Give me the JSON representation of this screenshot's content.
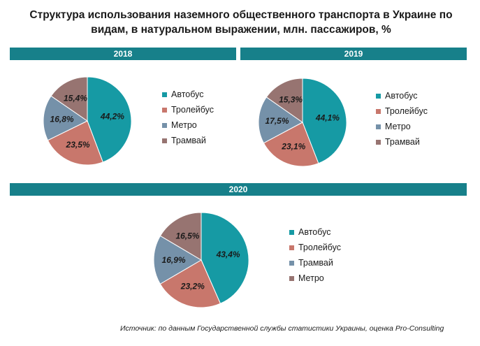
{
  "title": "Структура использования наземного общественного транспорта в Украине по видам, в натуральном выражении, млн. пассажиров, %",
  "source": "Источник: по данным Государственной службы статистики Украины, оценка Pro-Consulting",
  "colors": {
    "bar": "#17808a"
  },
  "chart_data": [
    {
      "type": "pie",
      "title": "2018",
      "categories": [
        "Автобус",
        "Тролейбус",
        "Метро",
        "Трамвай"
      ],
      "values": [
        44.2,
        23.5,
        16.8,
        15.4
      ],
      "labels": [
        "44,2%",
        "23,5%",
        "16,8%",
        "15,4%"
      ],
      "colors": [
        "#169aa4",
        "#c8776c",
        "#7591a9",
        "#977471"
      ],
      "legend": [
        "Автобус",
        "Тролейбус",
        "Метро",
        "Трамвай"
      ],
      "legend_colors": [
        "#169aa4",
        "#c8776c",
        "#7591a9",
        "#977471"
      ]
    },
    {
      "type": "pie",
      "title": "2019",
      "categories": [
        "Автобус",
        "Тролейбус",
        "Метро",
        "Трамвай"
      ],
      "values": [
        44.1,
        23.1,
        17.5,
        15.3
      ],
      "labels": [
        "44,1%",
        "23,1%",
        "17,5%",
        "15,3%"
      ],
      "colors": [
        "#169aa4",
        "#c8776c",
        "#7591a9",
        "#977471"
      ],
      "legend": [
        "Автобус",
        "Тролейбус",
        "Метро",
        "Трамвай"
      ],
      "legend_colors": [
        "#169aa4",
        "#c8776c",
        "#7591a9",
        "#977471"
      ]
    },
    {
      "type": "pie",
      "title": "2020",
      "categories": [
        "Автобус",
        "Тролейбус",
        "Трамвай",
        "Метро"
      ],
      "values": [
        43.4,
        23.2,
        16.9,
        16.5
      ],
      "labels": [
        "43,4%",
        "23,2%",
        "16,9%",
        "16,5%"
      ],
      "colors": [
        "#169aa4",
        "#c8776c",
        "#7591a9",
        "#977471"
      ],
      "legend": [
        "Автобус",
        "Тролейбус",
        "Трамвай",
        "Метро"
      ],
      "legend_colors": [
        "#169aa4",
        "#c8776c",
        "#7591a9",
        "#977471"
      ]
    }
  ]
}
